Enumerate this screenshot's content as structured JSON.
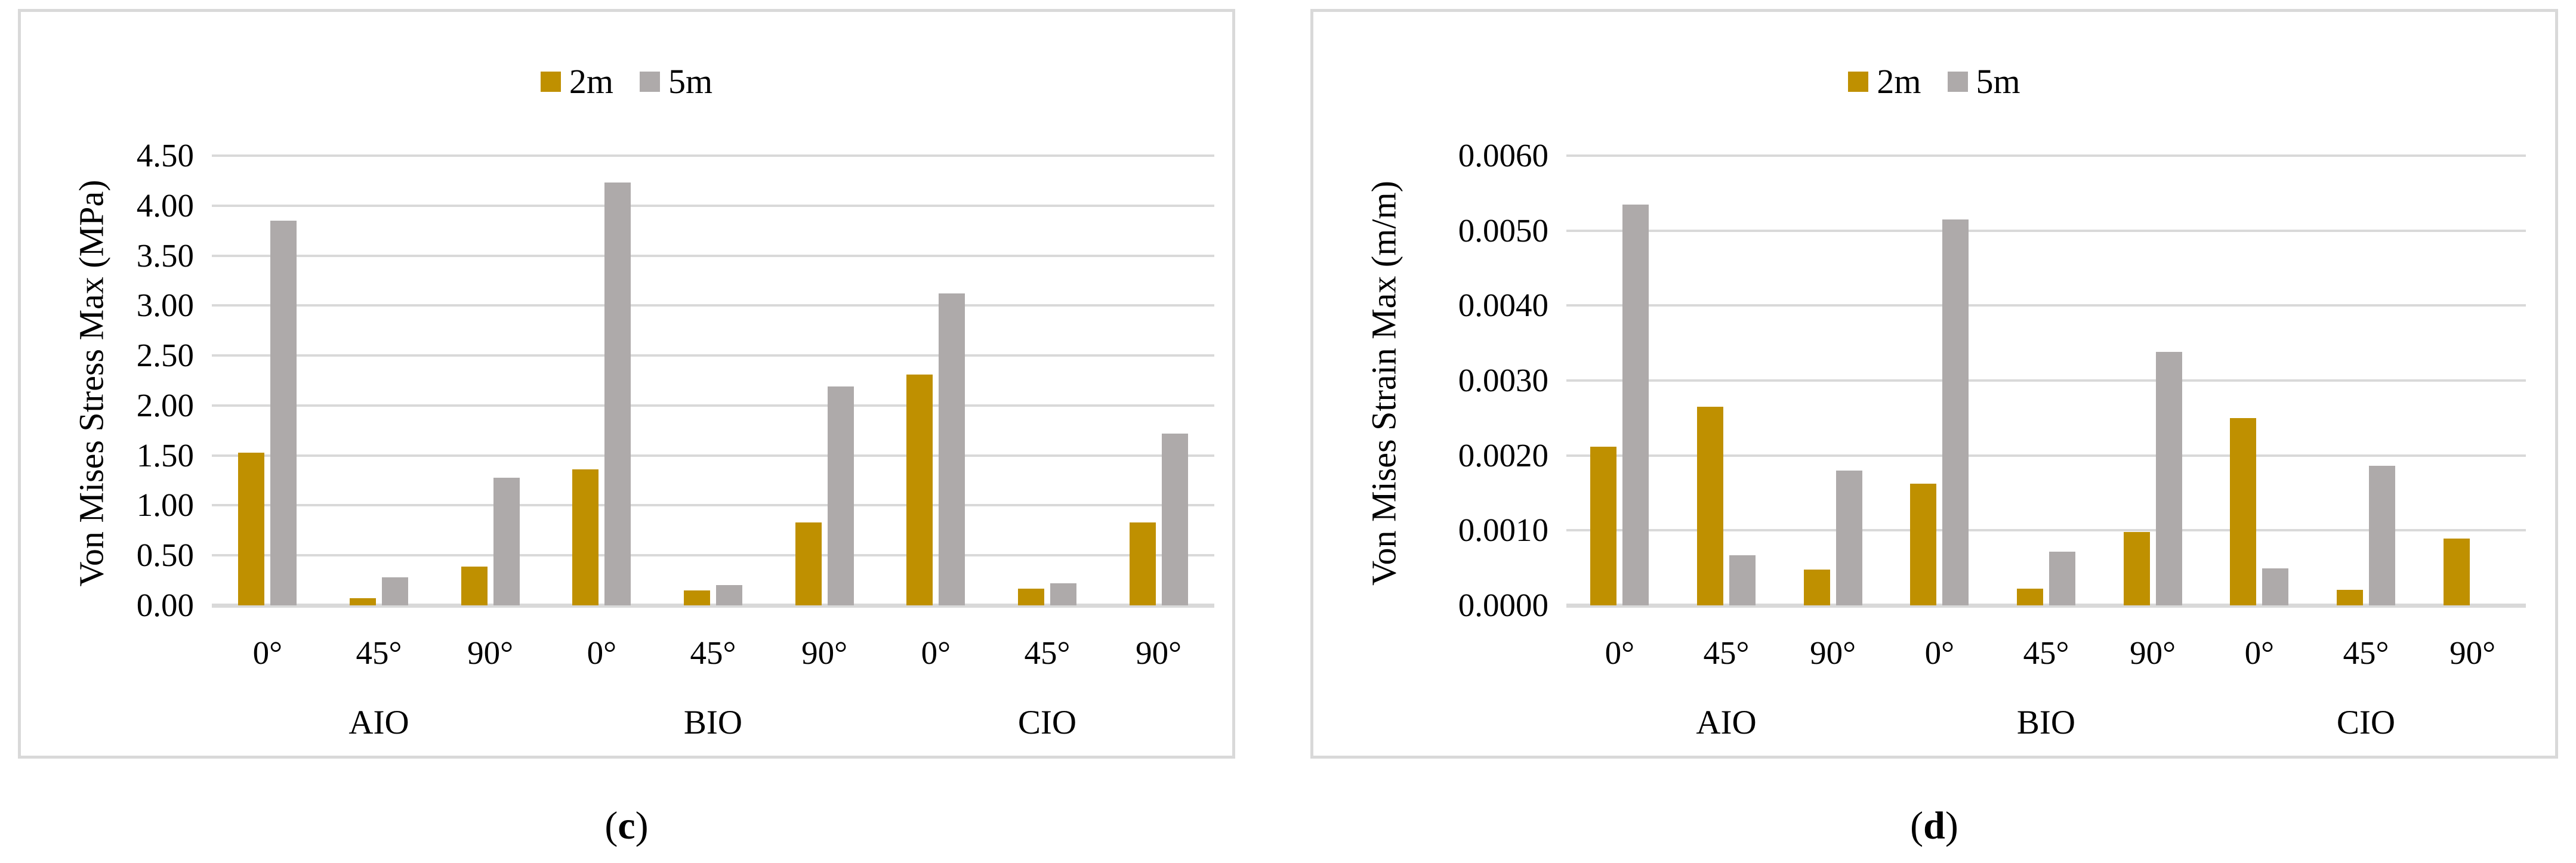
{
  "figure": {
    "background": "#ffffff",
    "gridline_color": "#d9d9d9",
    "axis_line_color": "#d9d9d9"
  },
  "chart_data": [
    {
      "id": "c",
      "type": "bar",
      "caption": {
        "pre": "(",
        "label": "c",
        "post": ")"
      },
      "ylabel": "Von Mises Stress Max (MPa)",
      "ylim": [
        0,
        4.5
      ],
      "ytick_step": 0.5,
      "ytick_labels": [
        "0.00",
        "0.50",
        "1.00",
        "1.50",
        "2.00",
        "2.50",
        "3.00",
        "3.50",
        "4.00",
        "4.50"
      ],
      "grid": true,
      "legend_position": "top-center",
      "group_labels": [
        "AIO",
        "BIO",
        "CIO"
      ],
      "categories": [
        "0°",
        "45°",
        "90°",
        "0°",
        "45°",
        "90°",
        "0°",
        "45°",
        "90°"
      ],
      "series": [
        {
          "name": "2m",
          "color": "#bf9000",
          "values": [
            1.53,
            0.07,
            0.39,
            1.36,
            0.15,
            0.83,
            2.31,
            0.17,
            0.83
          ]
        },
        {
          "name": "5m",
          "color": "#aeaaaa",
          "values": [
            3.85,
            0.28,
            1.28,
            4.23,
            0.2,
            2.19,
            3.12,
            0.22,
            1.72
          ]
        }
      ]
    },
    {
      "id": "d",
      "type": "bar",
      "caption": {
        "pre": "(",
        "label": "d",
        "post": ")"
      },
      "ylabel": "Von Mises Strain Max (m/m)",
      "ylim": [
        0,
        0.006
      ],
      "ytick_step": 0.001,
      "ytick_labels": [
        "0.0000",
        "0.0010",
        "0.0020",
        "0.0030",
        "0.0040",
        "0.0050",
        "0.0060"
      ],
      "grid": true,
      "legend_position": "top-center",
      "group_labels": [
        "AIO",
        "BIO",
        "CIO"
      ],
      "categories": [
        "0°",
        "45°",
        "90°",
        "0°",
        "45°",
        "90°",
        "0°",
        "45°",
        "90°"
      ],
      "series": [
        {
          "name": "2m",
          "color": "#bf9000",
          "values": [
            0.00212,
            0.00265,
            0.00048,
            0.00162,
            0.00022,
            0.00098,
            0.0025,
            0.00021,
            0.00089
          ]
        },
        {
          "name": "5m",
          "color": "#aeaaaa",
          "values": [
            0.00535,
            0.00067,
            0.0018,
            0.00515,
            0.00072,
            0.00338,
            0.00049,
            0.00186,
            0
          ]
        }
      ]
    }
  ]
}
